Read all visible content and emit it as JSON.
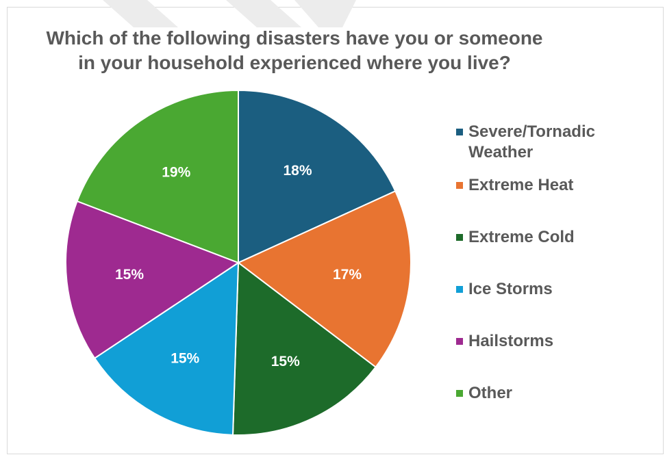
{
  "chart_data": {
    "type": "pie",
    "title": "Which of the following disasters have you or someone in your household experienced where you live?",
    "title_lines": [
      "Which of the following disasters have you or someone",
      "in your household experienced where you live?"
    ],
    "categories": [
      "Severe/Tornadic Weather",
      "Extreme Heat",
      "Extreme Cold",
      "Ice Storms",
      "Hailstorms",
      "Other"
    ],
    "values": [
      18,
      17,
      15,
      15,
      15,
      19
    ],
    "value_labels": [
      "18%",
      "17%",
      "15%",
      "15%",
      "15%",
      "19%"
    ],
    "colors": [
      "#1b5e80",
      "#e87431",
      "#1d6b2a",
      "#119fd6",
      "#9e2a90",
      "#4aa832"
    ],
    "start_angle_deg": 0,
    "direction": "clockwise",
    "legend_position": "right"
  }
}
